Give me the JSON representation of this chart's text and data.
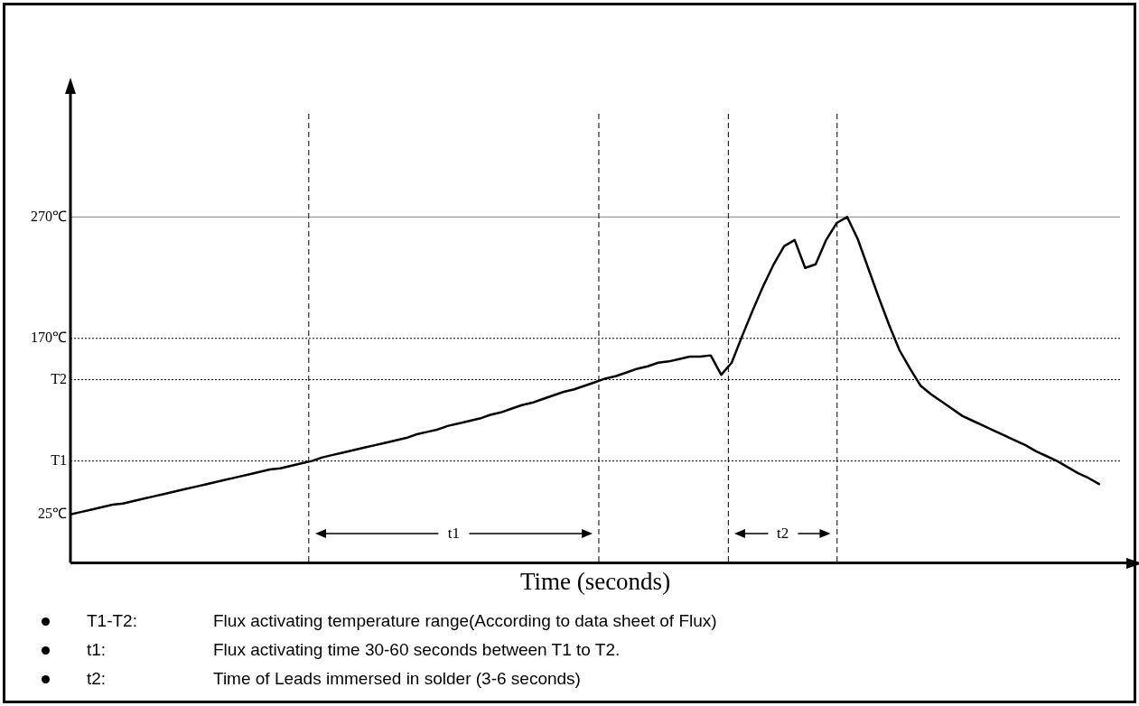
{
  "chart_data": {
    "type": "line",
    "xlabel": "Time (seconds)",
    "categories": [
      null,
      null,
      null,
      null,
      null,
      null,
      null,
      null,
      null,
      null,
      null,
      null,
      null,
      null,
      null,
      null,
      null,
      null,
      null,
      null,
      null,
      null,
      null,
      null,
      null,
      null,
      null,
      null,
      null,
      null,
      null,
      null,
      null,
      null,
      null,
      null,
      null,
      null,
      null,
      null,
      null,
      null,
      null,
      null,
      null,
      null,
      null,
      null,
      null,
      null,
      null,
      null,
      null,
      null,
      null,
      null,
      null,
      null,
      null,
      null,
      null,
      null,
      null,
      null,
      null,
      null,
      null,
      null,
      null,
      null,
      null,
      null,
      null,
      null,
      null,
      null,
      null,
      null,
      null,
      null,
      null,
      null,
      null,
      null,
      null,
      null,
      null,
      null,
      null,
      null,
      null,
      null,
      null,
      null,
      null,
      null,
      null,
      null,
      null,
      null,
      null
    ],
    "ylim": [
      -15,
      355
    ],
    "tick_labels": "y",
    "grid": false,
    "legend": false,
    "marker": "none",
    "line_style": "solid",
    "yticks": [
      {
        "value": 25,
        "label": "25℃"
      },
      {
        "value": 69,
        "label": "T1"
      },
      {
        "value": 136,
        "label": "T2"
      },
      {
        "value": 170,
        "label": "170℃"
      },
      {
        "value": 270,
        "label": "270℃"
      }
    ],
    "series": [
      {
        "color": "#000000",
        "values": [
          25,
          27,
          29,
          31,
          33,
          34,
          36,
          38,
          40,
          42,
          44,
          46,
          48,
          50,
          52,
          54,
          56,
          58,
          60,
          62,
          63,
          65,
          67,
          69,
          72,
          74,
          76,
          78,
          80,
          82,
          84,
          86,
          88,
          91,
          93,
          95,
          98,
          100,
          102,
          104,
          107,
          109,
          112,
          115,
          117,
          120,
          123,
          126,
          128,
          131,
          134,
          137,
          139,
          142,
          145,
          147,
          150,
          151,
          153,
          155,
          155,
          156,
          140,
          150,
          172,
          193,
          213,
          231,
          246,
          251,
          228,
          231,
          251,
          265,
          270,
          252,
          228,
          204,
          181,
          160,
          145,
          131,
          124,
          118,
          112,
          106,
          102,
          98,
          94,
          90,
          86,
          82,
          77,
          73,
          69,
          64,
          59,
          55,
          50,
          null,
          null
        ]
      }
    ],
    "ref_lines": [
      {
        "axis": "y",
        "value": 270,
        "color": "#808080",
        "line_style": "solid"
      },
      {
        "axis": "y",
        "value": 170,
        "color": "#000000",
        "line_style": "dotted"
      },
      {
        "axis": "y",
        "value": 136,
        "color": "#000000",
        "line_style": "dotted"
      },
      {
        "axis": "y",
        "value": 69,
        "color": "#000000",
        "line_style": "dotted"
      }
    ],
    "annotations": [
      {
        "text": "t1",
        "y": 9
      },
      {
        "text": "t2",
        "y": 9
      },
      "T1-T2: Flux activating temperature range(According to data sheet of Flux)",
      "t1: Flux activating time 30-60 seconds between T1 to T2.",
      "t2: Time of Leads immersed in solder (3-6 seconds)"
    ]
  }
}
